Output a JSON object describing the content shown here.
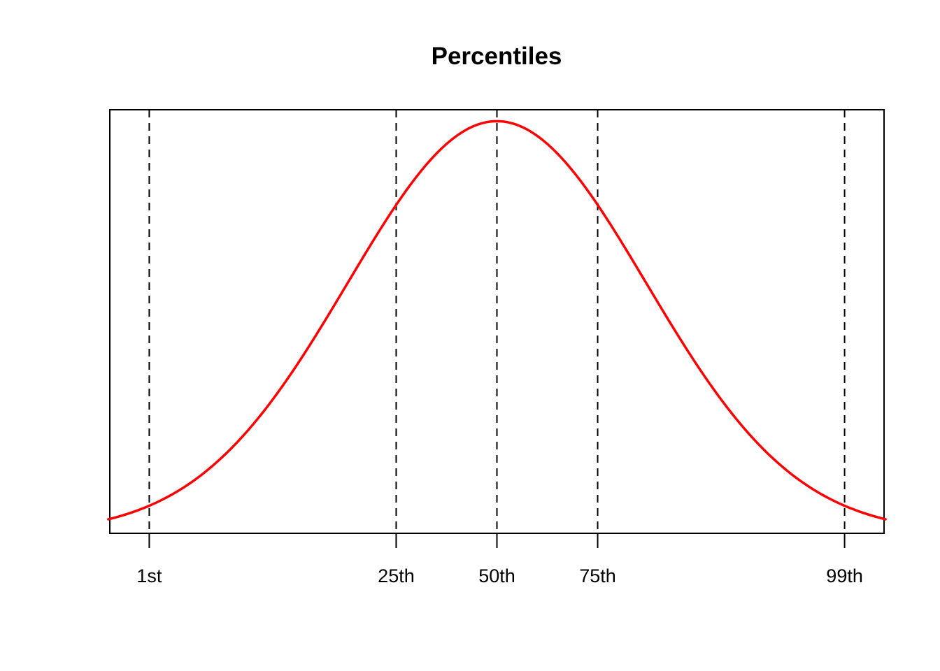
{
  "chart_data": {
    "type": "line",
    "title": "Percentiles",
    "xlabel": "",
    "ylabel": "",
    "distribution": "normal",
    "xlim": [
      -2.59,
      2.59
    ],
    "ylim": [
      0,
      0.41
    ],
    "x_range": [
      -2.6,
      2.6
    ],
    "series": [
      {
        "x": [
          -2.6,
          -2.326,
          -2.0,
          -1.5,
          -1.0,
          -0.674,
          -0.5,
          0,
          0.5,
          0.674,
          1.0,
          1.5,
          2.0,
          2.326,
          2.6
        ],
        "y": [
          0.0136,
          0.0267,
          0.054,
          0.1295,
          0.242,
          0.3178,
          0.3521,
          0.3989,
          0.3521,
          0.3178,
          0.242,
          0.1295,
          0.054,
          0.0267,
          0.0136
        ]
      }
    ],
    "percentile_markers": [
      {
        "label": "1st",
        "x": -2.326
      },
      {
        "label": "25th",
        "x": -0.674
      },
      {
        "label": "50th",
        "x": 0
      },
      {
        "label": "75th",
        "x": 0.674
      },
      {
        "label": "99th",
        "x": 2.326
      }
    ],
    "grid": false,
    "box": true,
    "line_color": "#ff0000",
    "marker_color": "#000000",
    "marker_style": "dashed"
  }
}
